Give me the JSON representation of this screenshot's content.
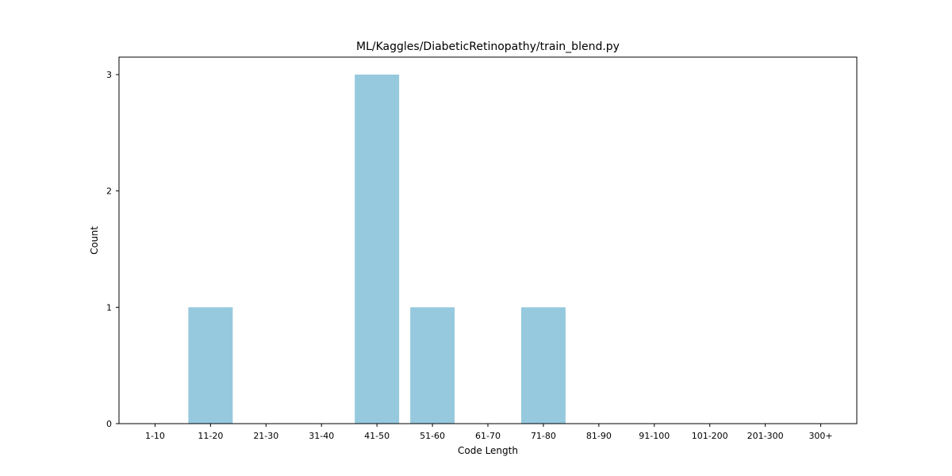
{
  "chart_data": {
    "type": "bar",
    "title": "ML/Kaggles/DiabeticRetinopathy/train_blend.py",
    "xlabel": "Code Length",
    "ylabel": "Count",
    "categories": [
      "1-10",
      "11-20",
      "21-30",
      "31-40",
      "41-50",
      "51-60",
      "61-70",
      "71-80",
      "81-90",
      "91-100",
      "101-200",
      "201-300",
      "300+"
    ],
    "values": [
      0,
      1,
      0,
      0,
      3,
      1,
      0,
      1,
      0,
      0,
      0,
      0,
      0
    ],
    "ylim": [
      0,
      3.15
    ],
    "yticks": [
      0,
      1,
      2,
      3
    ],
    "bar_color": "#96c9dd",
    "grid": false,
    "legend": "none"
  }
}
